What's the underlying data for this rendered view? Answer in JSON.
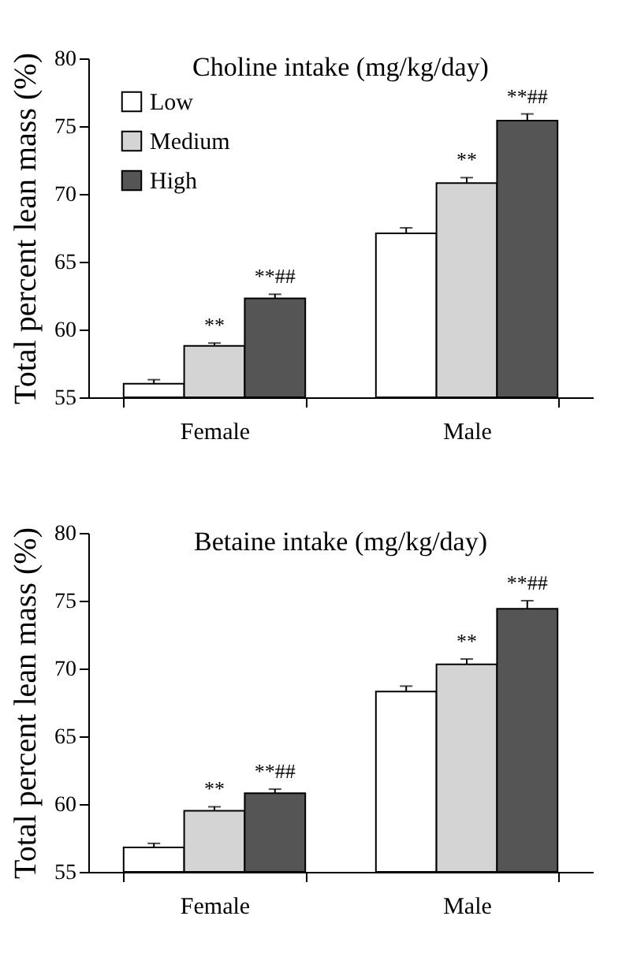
{
  "chart_data": [
    {
      "type": "bar",
      "title": "Choline intake (mg/kg/day)",
      "ylabel": "Total percent lean mass (%)",
      "categories": [
        "Female",
        "Male"
      ],
      "series": [
        {
          "name": "Low",
          "color": "#ffffff",
          "values": [
            56.0,
            67.1
          ],
          "errors": [
            0.3,
            0.4
          ]
        },
        {
          "name": "Medium",
          "color": "#d4d4d4",
          "values": [
            58.8,
            70.8
          ],
          "errors": [
            0.2,
            0.4
          ],
          "value_labels": [
            "**",
            "**"
          ]
        },
        {
          "name": "High",
          "color": "#555555",
          "values": [
            62.3,
            75.4
          ],
          "errors": [
            0.3,
            0.5
          ],
          "value_labels": [
            "**##",
            "**##"
          ]
        }
      ],
      "ylim": [
        55,
        80
      ],
      "yticks": [
        55,
        60,
        65,
        70,
        75,
        80
      ],
      "legend": "top left",
      "grid": false
    },
    {
      "type": "bar",
      "title": "Betaine intake (mg/kg/day)",
      "ylabel": "Total percent lean mass (%)",
      "categories": [
        "Female",
        "Male"
      ],
      "series": [
        {
          "color": "#ffffff",
          "values": [
            56.8,
            68.3
          ],
          "errors": [
            0.3,
            0.4
          ]
        },
        {
          "color": "#d4d4d4",
          "values": [
            59.5,
            70.3
          ],
          "errors": [
            0.3,
            0.4
          ],
          "value_labels": [
            "**",
            "**"
          ]
        },
        {
          "color": "#555555",
          "values": [
            60.8,
            74.4
          ],
          "errors": [
            0.3,
            0.6
          ],
          "value_labels": [
            "**##",
            "**##"
          ]
        }
      ],
      "ylim": [
        55,
        80
      ],
      "yticks": [
        55,
        60,
        65,
        70,
        75,
        80
      ],
      "legend": false,
      "grid": false
    }
  ]
}
